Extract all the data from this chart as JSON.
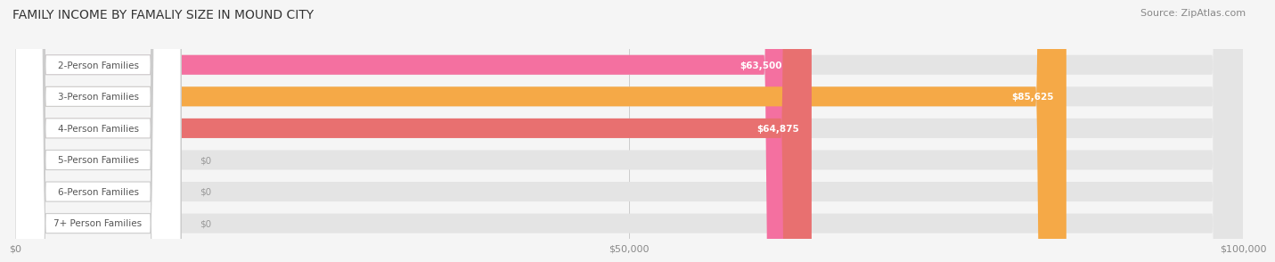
{
  "title": "FAMILY INCOME BY FAMALIY SIZE IN MOUND CITY",
  "source": "Source: ZipAtlas.com",
  "categories": [
    "2-Person Families",
    "3-Person Families",
    "4-Person Families",
    "5-Person Families",
    "6-Person Families",
    "7+ Person Families"
  ],
  "values": [
    63500,
    85625,
    64875,
    0,
    0,
    0
  ],
  "bar_colors": [
    "#f470a0",
    "#f5a947",
    "#e87070",
    "#a8c4e8",
    "#c4a8d8",
    "#7dd0d8"
  ],
  "value_labels": [
    "$63,500",
    "$85,625",
    "$64,875",
    "$0",
    "$0",
    "$0"
  ],
  "xlim": [
    0,
    100000
  ],
  "xticks": [
    0,
    50000,
    100000
  ],
  "xticklabels": [
    "$0",
    "$50,000",
    "$100,000"
  ],
  "background_color": "#f5f5f5",
  "bar_bg_color": "#e4e4e4",
  "title_fontsize": 10,
  "source_fontsize": 8,
  "bar_height": 0.62,
  "label_fontsize": 7.5,
  "value_fontsize": 7.5
}
